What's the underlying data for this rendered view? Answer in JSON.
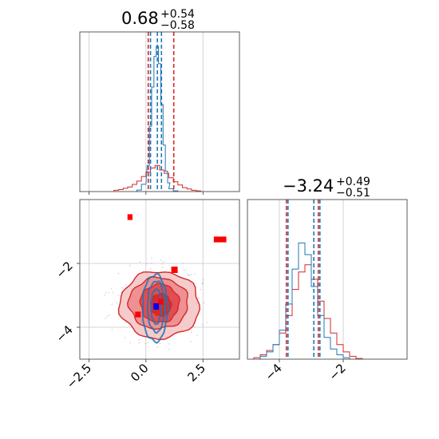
{
  "chart_data": [
    {
      "panel": "marginal-param-1",
      "type": "histogram",
      "title": {
        "value": "0.68",
        "upper": "+0.54",
        "lower": "−0.58"
      },
      "xlim": [
        -2.9,
        4.1
      ],
      "grid": true,
      "colors": {
        "red": "#d62728",
        "blue": "#1f77b4"
      },
      "red_quantiles": [
        0.1,
        1.22
      ],
      "blue_quantiles": [
        0.2,
        0.5,
        0.68
      ],
      "red_hist": {
        "x": [
          -1.3,
          -1.1,
          -0.9,
          -0.7,
          -0.5,
          -0.3,
          -0.1,
          0.1,
          0.3,
          0.5,
          0.7,
          0.9,
          1.1,
          1.3,
          1.5,
          1.7,
          1.9,
          2.1,
          2.3
        ],
        "y": [
          0.02,
          0.03,
          0.05,
          0.07,
          0.11,
          0.16,
          0.23,
          0.3,
          0.36,
          0.4,
          0.33,
          0.28,
          0.21,
          0.15,
          0.1,
          0.06,
          0.04,
          0.02,
          0.01
        ]
      },
      "blue_hist": {
        "x": [
          -0.3,
          -0.1,
          0.1,
          0.2,
          0.3,
          0.4,
          0.5,
          0.6,
          0.7,
          0.8,
          0.9,
          1.0,
          1.1,
          1.3
        ],
        "y": [
          0.01,
          0.05,
          0.18,
          0.45,
          0.72,
          0.93,
          1.0,
          0.88,
          0.6,
          0.32,
          0.14,
          0.06,
          0.02,
          0.005
        ]
      }
    },
    {
      "panel": "marginal-param-2",
      "type": "histogram",
      "title": {
        "value": "−3.24",
        "upper": "+0.49",
        "lower": "−0.51"
      },
      "xlim": [
        -5.0,
        0.0
      ],
      "grid": true,
      "xticks": [
        "−4",
        "−2"
      ],
      "red_quantiles": [
        -3.78,
        -2.78
      ],
      "blue_quantiles": [
        -3.73,
        -2.92,
        -2.73
      ],
      "red_hist": {
        "x": [
          -4.7,
          -4.5,
          -4.3,
          -4.1,
          -3.9,
          -3.7,
          -3.5,
          -3.3,
          -3.1,
          -2.9,
          -2.7,
          -2.5,
          -2.3,
          -2.1,
          -1.9,
          -1.7,
          -1.5
        ],
        "y": [
          0.01,
          0.03,
          0.06,
          0.1,
          0.18,
          0.3,
          0.48,
          0.6,
          0.65,
          0.55,
          0.4,
          0.28,
          0.18,
          0.1,
          0.05,
          0.02,
          0.005
        ]
      },
      "blue_hist": {
        "x": [
          -4.5,
          -4.3,
          -4.1,
          -3.9,
          -3.7,
          -3.5,
          -3.3,
          -3.1,
          -2.9,
          -2.7,
          -2.5,
          -2.3,
          -2.1,
          -1.9
        ],
        "y": [
          0.02,
          0.05,
          0.1,
          0.2,
          0.38,
          0.62,
          0.8,
          0.72,
          0.5,
          0.3,
          0.15,
          0.07,
          0.03,
          0.01
        ]
      }
    },
    {
      "panel": "joint-2d",
      "type": "contour",
      "xlim": [
        -2.9,
        4.1
      ],
      "ylim": [
        -5.0,
        0.0
      ],
      "xticks": [
        "−2.5",
        "0.0",
        "2.5"
      ],
      "yticks": [
        "−2",
        "−4"
      ],
      "red_contours": [
        {
          "cx": 0.6,
          "cy": -3.3,
          "rx": 1.75,
          "ry": 1.05,
          "fill": "#f6c8c9"
        },
        {
          "cx": 0.55,
          "cy": -3.25,
          "rx": 1.3,
          "ry": 0.8,
          "fill": "#ec8d8f"
        },
        {
          "cx": 0.6,
          "cy": -3.25,
          "rx": 0.85,
          "ry": 0.6,
          "fill": "#e04a4c"
        },
        {
          "cx": 0.65,
          "cy": -3.3,
          "rx": 0.45,
          "ry": 0.35,
          "fill": "#d62728"
        }
      ],
      "blue_contours": [
        {
          "cx": 0.4,
          "cy": -3.4,
          "rx": 0.55,
          "ry": 1.05
        },
        {
          "cx": 0.45,
          "cy": -3.35,
          "rx": 0.38,
          "ry": 0.8
        },
        {
          "cx": 0.45,
          "cy": -3.35,
          "rx": 0.22,
          "ry": 0.55
        }
      ],
      "red_markers": [
        {
          "x": -0.7,
          "y": -0.55,
          "w": 0.22,
          "h": 0.18
        },
        {
          "x": 3.25,
          "y": -1.25,
          "w": 0.55,
          "h": 0.18
        },
        {
          "x": 1.25,
          "y": -2.2,
          "w": 0.28,
          "h": 0.2
        },
        {
          "x": -0.35,
          "y": -3.6,
          "w": 0.25,
          "h": 0.18
        },
        {
          "x": 0.65,
          "y": -3.2,
          "w": 0.22,
          "h": 0.18
        }
      ],
      "blue_markers": [
        {
          "x": 0.45,
          "y": -3.35,
          "w": 0.24,
          "h": 0.2
        }
      ]
    }
  ]
}
